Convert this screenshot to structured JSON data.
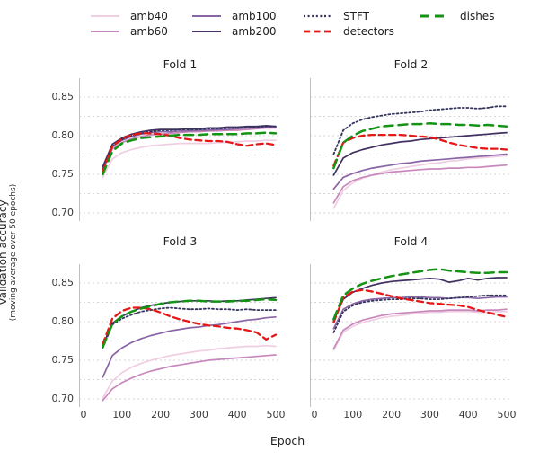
{
  "legend": {
    "items": [
      {
        "label": "amb40",
        "color": "#f0cee2",
        "style": "solid"
      },
      {
        "label": "amb60",
        "color": "#c988bc",
        "style": "solid"
      },
      {
        "label": "amb100",
        "color": "#8a65a6",
        "style": "solid"
      },
      {
        "label": "amb200",
        "color": "#413061",
        "style": "solid"
      },
      {
        "label": "STFT",
        "color": "#34345c",
        "style": "dotted"
      },
      {
        "label": "detectors",
        "color": "#e61717",
        "style": "dashed"
      },
      {
        "label": "dishes",
        "color": "#149314",
        "style": "longdash"
      }
    ]
  },
  "ylabel": {
    "line1": "Validation accuracy",
    "line2": "(moving average over 50 epochs)"
  },
  "xlabel": "Epoch",
  "chart_data": {
    "type": "line",
    "x": [
      50,
      75,
      100,
      125,
      150,
      175,
      200,
      225,
      250,
      275,
      300,
      325,
      350,
      375,
      400,
      425,
      450,
      475,
      500
    ],
    "xticks": [
      0,
      100,
      200,
      300,
      400,
      500
    ],
    "yticks": [
      0.85,
      0.8,
      0.75,
      0.7
    ],
    "xlim": [
      0,
      510
    ],
    "ylim": [
      0.682,
      0.876
    ],
    "grid": "horizontal dashed lines every 0.025 from 0.70 to 0.85",
    "legend_position": "top",
    "subplots": [
      {
        "title": "Fold 1",
        "series": [
          {
            "name": "amb40",
            "values": [
              0.746,
              0.77,
              0.778,
              0.782,
              0.785,
              0.787,
              0.788,
              0.789,
              0.79,
              0.79,
              0.79,
              0.79,
              0.791,
              0.791,
              0.792,
              0.793,
              0.793,
              0.794,
              0.794
            ]
          },
          {
            "name": "amb60",
            "values": [
              0.754,
              0.783,
              0.791,
              0.796,
              0.799,
              0.801,
              0.802,
              0.803,
              0.804,
              0.805,
              0.805,
              0.806,
              0.806,
              0.807,
              0.807,
              0.808,
              0.809,
              0.81,
              0.81
            ]
          },
          {
            "name": "amb100",
            "values": [
              0.757,
              0.786,
              0.794,
              0.799,
              0.802,
              0.804,
              0.805,
              0.805,
              0.806,
              0.806,
              0.807,
              0.807,
              0.808,
              0.808,
              0.809,
              0.81,
              0.81,
              0.811,
              0.811
            ]
          },
          {
            "name": "amb200",
            "values": [
              0.76,
              0.789,
              0.797,
              0.802,
              0.805,
              0.807,
              0.808,
              0.808,
              0.808,
              0.809,
              0.809,
              0.81,
              0.81,
              0.811,
              0.811,
              0.812,
              0.812,
              0.813,
              0.812
            ]
          },
          {
            "name": "STFT",
            "values": [
              0.756,
              0.786,
              0.795,
              0.8,
              0.803,
              0.805,
              0.807,
              0.807,
              0.808,
              0.808,
              0.808,
              0.809,
              0.809,
              0.81,
              0.81,
              0.811,
              0.811,
              0.812,
              0.812
            ]
          },
          {
            "name": "detectors",
            "values": [
              0.754,
              0.786,
              0.796,
              0.801,
              0.803,
              0.803,
              0.802,
              0.8,
              0.797,
              0.795,
              0.794,
              0.793,
              0.793,
              0.792,
              0.789,
              0.787,
              0.789,
              0.79,
              0.788
            ]
          },
          {
            "name": "dishes",
            "values": [
              0.75,
              0.78,
              0.79,
              0.794,
              0.797,
              0.798,
              0.799,
              0.8,
              0.801,
              0.801,
              0.801,
              0.802,
              0.802,
              0.802,
              0.802,
              0.803,
              0.803,
              0.804,
              0.803
            ]
          }
        ]
      },
      {
        "title": "Fold 2",
        "series": [
          {
            "name": "amb40",
            "values": [
              0.706,
              0.729,
              0.739,
              0.745,
              0.749,
              0.753,
              0.756,
              0.758,
              0.76,
              0.762,
              0.764,
              0.765,
              0.767,
              0.768,
              0.77,
              0.771,
              0.772,
              0.773,
              0.774
            ]
          },
          {
            "name": "amb60",
            "values": [
              0.713,
              0.734,
              0.742,
              0.746,
              0.749,
              0.751,
              0.753,
              0.754,
              0.755,
              0.756,
              0.757,
              0.757,
              0.758,
              0.758,
              0.759,
              0.759,
              0.76,
              0.761,
              0.762
            ]
          },
          {
            "name": "amb100",
            "values": [
              0.731,
              0.746,
              0.751,
              0.755,
              0.758,
              0.76,
              0.762,
              0.764,
              0.765,
              0.767,
              0.768,
              0.769,
              0.77,
              0.771,
              0.772,
              0.773,
              0.774,
              0.775,
              0.776
            ]
          },
          {
            "name": "amb200",
            "values": [
              0.749,
              0.771,
              0.778,
              0.782,
              0.785,
              0.788,
              0.79,
              0.792,
              0.793,
              0.795,
              0.796,
              0.797,
              0.798,
              0.799,
              0.8,
              0.801,
              0.802,
              0.803,
              0.804
            ]
          },
          {
            "name": "STFT",
            "values": [
              0.776,
              0.807,
              0.816,
              0.821,
              0.824,
              0.826,
              0.828,
              0.829,
              0.83,
              0.831,
              0.833,
              0.834,
              0.835,
              0.836,
              0.836,
              0.835,
              0.836,
              0.838,
              0.838
            ]
          },
          {
            "name": "detectors",
            "values": [
              0.761,
              0.791,
              0.797,
              0.8,
              0.801,
              0.801,
              0.801,
              0.801,
              0.8,
              0.799,
              0.798,
              0.795,
              0.791,
              0.788,
              0.786,
              0.784,
              0.783,
              0.783,
              0.782
            ]
          },
          {
            "name": "dishes",
            "values": [
              0.758,
              0.791,
              0.8,
              0.806,
              0.809,
              0.812,
              0.813,
              0.814,
              0.815,
              0.815,
              0.816,
              0.815,
              0.815,
              0.814,
              0.814,
              0.813,
              0.814,
              0.813,
              0.812
            ]
          }
        ]
      },
      {
        "title": "Fold 3",
        "series": [
          {
            "name": "amb40",
            "values": [
              0.701,
              0.723,
              0.734,
              0.741,
              0.746,
              0.75,
              0.753,
              0.756,
              0.758,
              0.76,
              0.762,
              0.763,
              0.765,
              0.766,
              0.767,
              0.768,
              0.768,
              0.769,
              0.768
            ]
          },
          {
            "name": "amb60",
            "values": [
              0.698,
              0.713,
              0.721,
              0.727,
              0.732,
              0.736,
              0.739,
              0.742,
              0.744,
              0.746,
              0.748,
              0.75,
              0.751,
              0.752,
              0.753,
              0.754,
              0.755,
              0.756,
              0.757
            ]
          },
          {
            "name": "amb100",
            "values": [
              0.728,
              0.756,
              0.766,
              0.773,
              0.778,
              0.782,
              0.785,
              0.788,
              0.79,
              0.792,
              0.793,
              0.795,
              0.796,
              0.798,
              0.8,
              0.802,
              0.803,
              0.805,
              0.806
            ]
          },
          {
            "name": "amb200",
            "values": [
              0.769,
              0.798,
              0.807,
              0.813,
              0.818,
              0.821,
              0.823,
              0.825,
              0.826,
              0.827,
              0.827,
              0.827,
              0.826,
              0.827,
              0.827,
              0.828,
              0.829,
              0.83,
              0.831
            ]
          },
          {
            "name": "STFT",
            "values": [
              0.766,
              0.796,
              0.804,
              0.809,
              0.813,
              0.815,
              0.817,
              0.818,
              0.817,
              0.816,
              0.816,
              0.817,
              0.816,
              0.816,
              0.815,
              0.816,
              0.815,
              0.815,
              0.815
            ]
          },
          {
            "name": "detectors",
            "values": [
              0.771,
              0.804,
              0.814,
              0.818,
              0.818,
              0.816,
              0.812,
              0.807,
              0.803,
              0.8,
              0.797,
              0.795,
              0.794,
              0.792,
              0.791,
              0.789,
              0.786,
              0.777,
              0.783
            ]
          },
          {
            "name": "dishes",
            "values": [
              0.767,
              0.797,
              0.807,
              0.813,
              0.817,
              0.82,
              0.823,
              0.825,
              0.826,
              0.827,
              0.827,
              0.826,
              0.826,
              0.826,
              0.827,
              0.827,
              0.828,
              0.829,
              0.828
            ]
          }
        ]
      },
      {
        "title": "Fold 4",
        "series": [
          {
            "name": "amb40",
            "values": [
              0.763,
              0.786,
              0.794,
              0.799,
              0.802,
              0.805,
              0.807,
              0.808,
              0.81,
              0.811,
              0.812,
              0.812,
              0.813,
              0.813,
              0.813,
              0.812,
              0.812,
              0.813,
              0.813
            ]
          },
          {
            "name": "amb60",
            "values": [
              0.765,
              0.789,
              0.797,
              0.802,
              0.805,
              0.808,
              0.81,
              0.811,
              0.812,
              0.813,
              0.814,
              0.814,
              0.815,
              0.815,
              0.815,
              0.814,
              0.815,
              0.815,
              0.816
            ]
          },
          {
            "name": "amb100",
            "values": [
              0.791,
              0.816,
              0.823,
              0.827,
              0.829,
              0.83,
              0.831,
              0.831,
              0.832,
              0.832,
              0.831,
              0.831,
              0.83,
              0.831,
              0.831,
              0.83,
              0.831,
              0.832,
              0.832
            ]
          },
          {
            "name": "amb200",
            "values": [
              0.801,
              0.829,
              0.838,
              0.843,
              0.847,
              0.85,
              0.852,
              0.853,
              0.854,
              0.855,
              0.856,
              0.855,
              0.851,
              0.853,
              0.856,
              0.854,
              0.856,
              0.857,
              0.857
            ]
          },
          {
            "name": "STFT",
            "values": [
              0.786,
              0.813,
              0.821,
              0.825,
              0.827,
              0.828,
              0.829,
              0.829,
              0.83,
              0.83,
              0.829,
              0.829,
              0.83,
              0.831,
              0.832,
              0.833,
              0.834,
              0.834,
              0.834
            ]
          },
          {
            "name": "detectors",
            "values": [
              0.799,
              0.831,
              0.839,
              0.841,
              0.839,
              0.836,
              0.833,
              0.83,
              0.828,
              0.826,
              0.824,
              0.823,
              0.822,
              0.821,
              0.819,
              0.815,
              0.812,
              0.809,
              0.806
            ]
          },
          {
            "name": "dishes",
            "values": [
              0.803,
              0.834,
              0.843,
              0.849,
              0.853,
              0.856,
              0.859,
              0.861,
              0.863,
              0.865,
              0.867,
              0.868,
              0.866,
              0.865,
              0.864,
              0.863,
              0.863,
              0.864,
              0.864
            ]
          }
        ]
      }
    ]
  },
  "colors": {
    "grid": "#d4d4d4",
    "spine": "#c0c0c0",
    "text": "#2e2e2e"
  }
}
